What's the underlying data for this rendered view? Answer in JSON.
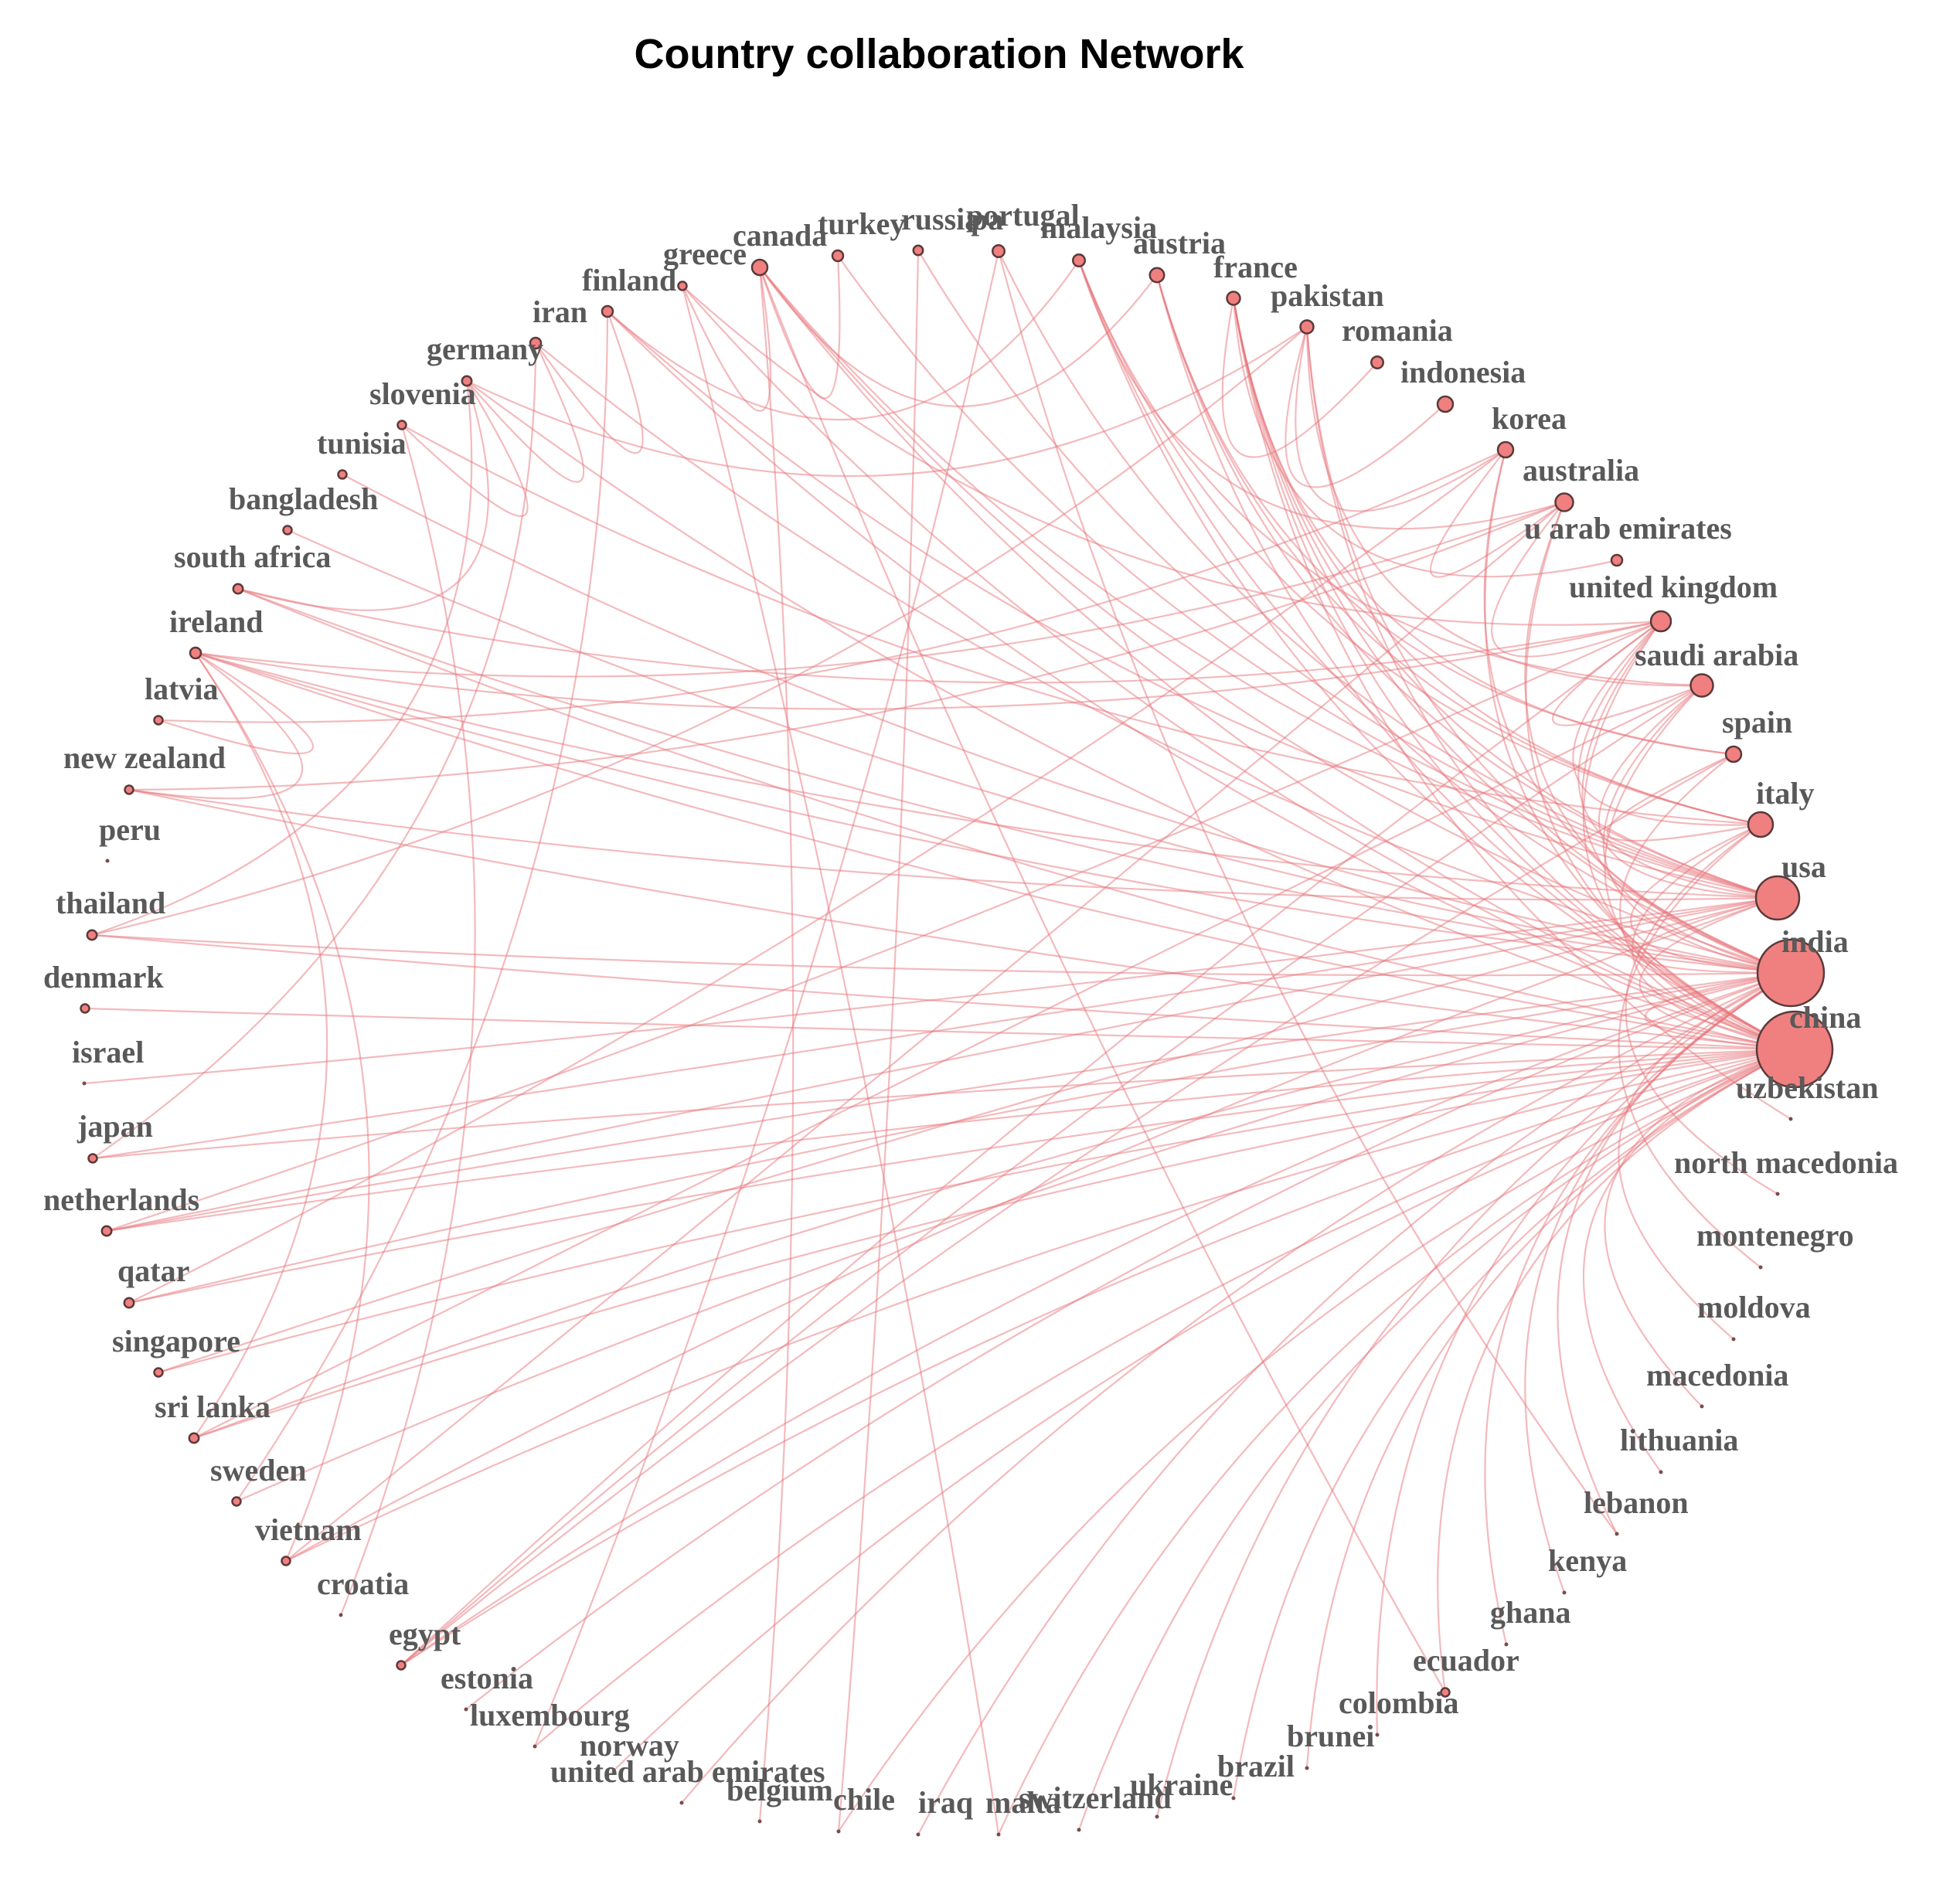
{
  "title": "Country collaboration Network",
  "colors": {
    "node_fill": "#f08080",
    "edge": "#e8767b",
    "label": "#595959"
  },
  "nodes": [
    {
      "id": "china",
      "label": "china",
      "weight": 30
    },
    {
      "id": "india",
      "label": "india",
      "weight": 26
    },
    {
      "id": "usa",
      "label": "usa",
      "weight": 16
    },
    {
      "id": "italy",
      "label": "italy",
      "weight": 8
    },
    {
      "id": "spain",
      "label": "spain",
      "weight": 4
    },
    {
      "id": "saudi arabia",
      "label": "saudi arabia",
      "weight": 7
    },
    {
      "id": "united kingdom",
      "label": "united kingdom",
      "weight": 6
    },
    {
      "id": "u arab emirates",
      "label": "u arab emirates",
      "weight": 2
    },
    {
      "id": "australia",
      "label": "australia",
      "weight": 5
    },
    {
      "id": "korea",
      "label": "korea",
      "weight": 4
    },
    {
      "id": "indonesia",
      "label": "indonesia",
      "weight": 4
    },
    {
      "id": "romania",
      "label": "romania",
      "weight": 2.5
    },
    {
      "id": "pakistan",
      "label": "pakistan",
      "weight": 3
    },
    {
      "id": "france",
      "label": "france",
      "weight": 3
    },
    {
      "id": "austria",
      "label": "austria",
      "weight": 3.5
    },
    {
      "id": "malaysia",
      "label": "malaysia",
      "weight": 2.5
    },
    {
      "id": "pa",
      "label": "pa",
      "weight": 1
    },
    {
      "id": "portugal",
      "label": "portugal",
      "weight": 2.5
    },
    {
      "id": "russia",
      "label": "russia",
      "weight": 1.5
    },
    {
      "id": "turkey",
      "label": "turkey",
      "weight": 2
    },
    {
      "id": "canada",
      "label": "canada",
      "weight": 4
    },
    {
      "id": "greece",
      "label": "greece",
      "weight": 1
    },
    {
      "id": "finland",
      "label": "finland",
      "weight": 2
    },
    {
      "id": "iran",
      "label": "iran",
      "weight": 2
    },
    {
      "id": "germany",
      "label": "germany",
      "weight": 1.5
    },
    {
      "id": "slovenia",
      "label": "slovenia",
      "weight": 1
    },
    {
      "id": "tunisia",
      "label": "tunisia",
      "weight": 1
    },
    {
      "id": "bangladesh",
      "label": "bangladesh",
      "weight": 1
    },
    {
      "id": "south africa",
      "label": "south africa",
      "weight": 1.5
    },
    {
      "id": "ireland",
      "label": "ireland",
      "weight": 2
    },
    {
      "id": "latvia",
      "label": "latvia",
      "weight": 1
    },
    {
      "id": "new zealand",
      "label": "new zealand",
      "weight": 1
    },
    {
      "id": "peru",
      "label": "peru",
      "weight": 0.5
    },
    {
      "id": "thailand",
      "label": "thailand",
      "weight": 1.5
    },
    {
      "id": "denmark",
      "label": "denmark",
      "weight": 1
    },
    {
      "id": "israel",
      "label": "israel",
      "weight": 0.5
    },
    {
      "id": "japan",
      "label": "japan",
      "weight": 1
    },
    {
      "id": "netherlands",
      "label": "netherlands",
      "weight": 1.5
    },
    {
      "id": "qatar",
      "label": "qatar",
      "weight": 1.5
    },
    {
      "id": "singapore",
      "label": "singapore",
      "weight": 1
    },
    {
      "id": "sri lanka",
      "label": "sri lanka",
      "weight": 1.5
    },
    {
      "id": "sweden",
      "label": "sweden",
      "weight": 1
    },
    {
      "id": "vietnam",
      "label": "vietnam",
      "weight": 1
    },
    {
      "id": "croatia",
      "label": "croatia",
      "weight": 0.5
    },
    {
      "id": "egypt",
      "label": "egypt",
      "weight": 1
    },
    {
      "id": "estonia",
      "label": "estonia",
      "weight": 0.5
    },
    {
      "id": "luxembourg",
      "label": "luxembourg",
      "weight": 0.5
    },
    {
      "id": "norway",
      "label": "norway",
      "weight": 0.5
    },
    {
      "id": "united arab emirates",
      "label": "united arab emirates",
      "weight": 0.5
    },
    {
      "id": "belgium",
      "label": "belgium",
      "weight": 0.5
    },
    {
      "id": "chile",
      "label": "chile",
      "weight": 0.5
    },
    {
      "id": "iraq",
      "label": "iraq",
      "weight": 0.5
    },
    {
      "id": "malta",
      "label": "malta",
      "weight": 0.5
    },
    {
      "id": "switzerland",
      "label": "switzerland",
      "weight": 0.5
    },
    {
      "id": "ukraine",
      "label": "ukraine",
      "weight": 0.5
    },
    {
      "id": "brazil",
      "label": "brazil",
      "weight": 0.5
    },
    {
      "id": "brunei",
      "label": "brunei",
      "weight": 0.5
    },
    {
      "id": "colombia",
      "label": "colombia",
      "weight": 0.5
    },
    {
      "id": "ecuador",
      "label": "ecuador",
      "weight": 1
    },
    {
      "id": "ghana",
      "label": "ghana",
      "weight": 0.5
    },
    {
      "id": "kenya",
      "label": "kenya",
      "weight": 0.5
    },
    {
      "id": "lebanon",
      "label": "lebanon",
      "weight": 0.5
    },
    {
      "id": "lithuania",
      "label": "lithuania",
      "weight": 0.5
    },
    {
      "id": "macedonia",
      "label": "macedonia",
      "weight": 0.5
    },
    {
      "id": "moldova",
      "label": "moldova",
      "weight": 0.5
    },
    {
      "id": "montenegro",
      "label": "montenegro",
      "weight": 0.5
    },
    {
      "id": "north macedonia",
      "label": "north macedonia",
      "weight": 0.5
    },
    {
      "id": "uzbekistan",
      "label": "uzbekistan",
      "weight": 0.5
    }
  ],
  "edges": [
    [
      "china",
      "india"
    ],
    [
      "china",
      "usa"
    ],
    [
      "china",
      "italy"
    ],
    [
      "china",
      "spain"
    ],
    [
      "china",
      "saudi arabia"
    ],
    [
      "china",
      "united kingdom"
    ],
    [
      "china",
      "australia"
    ],
    [
      "china",
      "korea"
    ],
    [
      "china",
      "pakistan"
    ],
    [
      "china",
      "france"
    ],
    [
      "china",
      "austria"
    ],
    [
      "china",
      "canada"
    ],
    [
      "china",
      "finland"
    ],
    [
      "china",
      "germany"
    ],
    [
      "china",
      "ireland"
    ],
    [
      "china",
      "south africa"
    ],
    [
      "china",
      "new zealand"
    ],
    [
      "china",
      "thailand"
    ],
    [
      "china",
      "netherlands"
    ],
    [
      "china",
      "qatar"
    ],
    [
      "china",
      "singapore"
    ],
    [
      "china",
      "sri lanka"
    ],
    [
      "china",
      "vietnam"
    ],
    [
      "china",
      "egypt"
    ],
    [
      "china",
      "luxembourg"
    ],
    [
      "china",
      "norway"
    ],
    [
      "china",
      "chile"
    ],
    [
      "china",
      "malta"
    ],
    [
      "china",
      "switzerland"
    ],
    [
      "china",
      "brazil"
    ],
    [
      "china",
      "brunei"
    ],
    [
      "china",
      "lithuania"
    ],
    [
      "china",
      "macedonia"
    ],
    [
      "china",
      "ecuador"
    ],
    [
      "china",
      "japan"
    ],
    [
      "china",
      "denmark"
    ],
    [
      "china",
      "greece"
    ],
    [
      "china",
      "malaysia"
    ],
    [
      "india",
      "usa"
    ],
    [
      "india",
      "italy"
    ],
    [
      "india",
      "saudi arabia"
    ],
    [
      "india",
      "united kingdom"
    ],
    [
      "india",
      "australia"
    ],
    [
      "india",
      "korea"
    ],
    [
      "india",
      "pakistan"
    ],
    [
      "india",
      "france"
    ],
    [
      "india",
      "malaysia"
    ],
    [
      "india",
      "canada"
    ],
    [
      "india",
      "iran"
    ],
    [
      "india",
      "ireland"
    ],
    [
      "india",
      "bangladesh"
    ],
    [
      "india",
      "south africa"
    ],
    [
      "india",
      "netherlands"
    ],
    [
      "india",
      "qatar"
    ],
    [
      "india",
      "sri lanka"
    ],
    [
      "india",
      "sweden"
    ],
    [
      "india",
      "egypt"
    ],
    [
      "india",
      "estonia"
    ],
    [
      "india",
      "united arab emirates"
    ],
    [
      "india",
      "iraq"
    ],
    [
      "india",
      "ukraine"
    ],
    [
      "india",
      "colombia"
    ],
    [
      "india",
      "ghana"
    ],
    [
      "india",
      "kenya"
    ],
    [
      "india",
      "lebanon"
    ],
    [
      "india",
      "moldova"
    ],
    [
      "india",
      "tunisia"
    ],
    [
      "india",
      "thailand"
    ],
    [
      "usa",
      "united kingdom"
    ],
    [
      "usa",
      "saudi arabia"
    ],
    [
      "usa",
      "canada"
    ],
    [
      "usa",
      "france"
    ],
    [
      "usa",
      "austria"
    ],
    [
      "usa",
      "finland"
    ],
    [
      "usa",
      "ireland"
    ],
    [
      "usa",
      "new zealand"
    ],
    [
      "usa",
      "netherlands"
    ],
    [
      "usa",
      "singapore"
    ],
    [
      "usa",
      "vietnam"
    ],
    [
      "usa",
      "turkey"
    ],
    [
      "usa",
      "portugal"
    ],
    [
      "usa",
      "russia"
    ],
    [
      "usa",
      "japan"
    ],
    [
      "usa",
      "israel"
    ],
    [
      "italy",
      "united kingdom"
    ],
    [
      "italy",
      "france"
    ],
    [
      "italy",
      "austria"
    ],
    [
      "italy",
      "malaysia"
    ],
    [
      "italy",
      "spain"
    ],
    [
      "italy",
      "slovenia"
    ],
    [
      "italy",
      "montenegro"
    ],
    [
      "italy",
      "north macedonia"
    ],
    [
      "united kingdom",
      "saudi arabia"
    ],
    [
      "united kingdom",
      "ireland"
    ],
    [
      "united kingdom",
      "south africa"
    ],
    [
      "united kingdom",
      "australia"
    ],
    [
      "united kingdom",
      "greece"
    ],
    [
      "united kingdom",
      "netherlands"
    ],
    [
      "united kingdom",
      "egypt"
    ],
    [
      "saudi arabia",
      "pakistan"
    ],
    [
      "saudi arabia",
      "egypt"
    ],
    [
      "saudi arabia",
      "malaysia"
    ],
    [
      "saudi arabia",
      "sri lanka"
    ],
    [
      "australia",
      "malaysia"
    ],
    [
      "australia",
      "korea"
    ],
    [
      "australia",
      "new zealand"
    ],
    [
      "australia",
      "ireland"
    ],
    [
      "australia",
      "vietnam"
    ],
    [
      "korea",
      "pakistan"
    ],
    [
      "korea",
      "latvia"
    ],
    [
      "korea",
      "qatar"
    ],
    [
      "pakistan",
      "indonesia"
    ],
    [
      "pakistan",
      "germany"
    ],
    [
      "pakistan",
      "thailand"
    ],
    [
      "france",
      "romania"
    ],
    [
      "france",
      "u arab emirates"
    ],
    [
      "france",
      "uzbekistan"
    ],
    [
      "france",
      "spain"
    ],
    [
      "austria",
      "canada"
    ],
    [
      "austria",
      "spain"
    ],
    [
      "malaysia",
      "finland"
    ],
    [
      "canada",
      "turkey"
    ],
    [
      "canada",
      "greece"
    ],
    [
      "canada",
      "ecuador"
    ],
    [
      "canada",
      "belgium"
    ],
    [
      "iran",
      "finland"
    ],
    [
      "iran",
      "germany"
    ],
    [
      "iran",
      "japan"
    ],
    [
      "finland",
      "sweden"
    ],
    [
      "germany",
      "slovenia"
    ],
    [
      "germany",
      "south africa"
    ],
    [
      "germany",
      "thailand"
    ],
    [
      "slovenia",
      "croatia"
    ],
    [
      "ireland",
      "latvia"
    ],
    [
      "ireland",
      "new zealand"
    ],
    [
      "ireland",
      "sri lanka"
    ],
    [
      "ireland",
      "vietnam"
    ],
    [
      "russia",
      "chile"
    ],
    [
      "portugal",
      "lebanon"
    ],
    [
      "greece",
      "malta"
    ],
    [
      "egypt",
      "spain"
    ],
    [
      "pa",
      "luxembourg"
    ]
  ]
}
